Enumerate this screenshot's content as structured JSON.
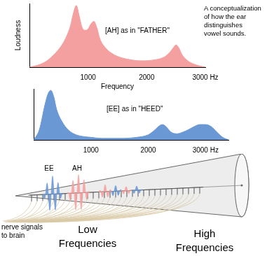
{
  "annotation": [
    "A conceptualization",
    "of how the ear",
    "distinguishes",
    "vowel sounds."
  ],
  "chart_data": [
    {
      "type": "area",
      "title": "[AH] as in \"FATHER\"",
      "x_label": "Frequency",
      "y_label": "Loudness",
      "x": [
        0,
        100,
        200,
        300,
        400,
        500,
        600,
        700,
        750,
        800,
        850,
        900,
        950,
        1000,
        1050,
        1100,
        1150,
        1200,
        1300,
        1400,
        1500,
        1700,
        1900,
        2100,
        2300,
        2400,
        2450,
        2500,
        2550,
        2600,
        2700,
        2800,
        2900,
        3000
      ],
      "values": [
        0,
        2,
        5,
        10,
        18,
        28,
        42,
        65,
        85,
        97,
        80,
        62,
        58,
        60,
        68,
        72,
        62,
        45,
        30,
        22,
        17,
        12,
        10,
        11,
        16,
        24,
        30,
        35,
        30,
        20,
        10,
        5,
        2,
        0
      ],
      "color": "#f5a0a0",
      "xlim": [
        0,
        3000
      ],
      "xticks": [
        1000,
        2000,
        {
          "value": 3000,
          "label": "3000 Hz"
        }
      ],
      "ylim": [
        0,
        100
      ],
      "grid": false,
      "tick_labels": "x"
    },
    {
      "type": "area",
      "title": "[EE] as in \"HEED\"",
      "x": [
        0,
        100,
        200,
        250,
        300,
        350,
        400,
        500,
        600,
        700,
        800,
        1000,
        1200,
        1500,
        1800,
        2000,
        2100,
        2200,
        2250,
        2300,
        2400,
        2500,
        2600,
        2700,
        2800,
        2900,
        3000,
        3100,
        3200,
        3300,
        3400
      ],
      "values": [
        0,
        20,
        70,
        90,
        97,
        85,
        60,
        35,
        20,
        12,
        8,
        5,
        3,
        3,
        5,
        10,
        18,
        28,
        30,
        27,
        15,
        12,
        15,
        20,
        26,
        30,
        30,
        26,
        15,
        5,
        0
      ],
      "color": "#6a98d4",
      "xlim": [
        0,
        3400
      ],
      "xticks": [
        1000,
        2000,
        {
          "value": 3000,
          "label": "3000 Hz"
        }
      ],
      "ylim": [
        0,
        100
      ],
      "grid": false,
      "tick_labels": "x"
    }
  ],
  "cochlea": {
    "wave_labels": [
      "EE",
      "AH"
    ],
    "nerve_label": [
      "nerve signals",
      "to brain"
    ],
    "low_label": [
      "Low",
      "Frequencies"
    ],
    "high_label": [
      "High",
      "Frequencies"
    ]
  }
}
